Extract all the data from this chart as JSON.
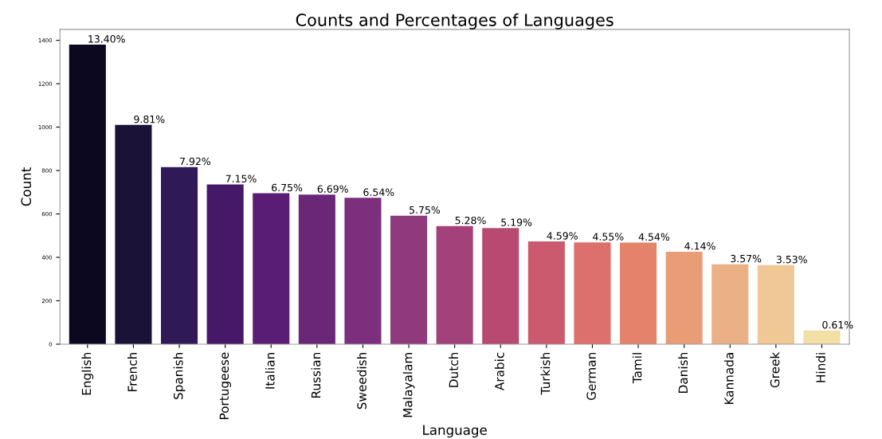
{
  "chart_data": {
    "type": "bar",
    "title": "Counts and Percentages of Languages",
    "xlabel": "Language",
    "ylabel": "Count",
    "categories": [
      "English",
      "French",
      "Spanish",
      "Portugeese",
      "Italian",
      "Russian",
      "Sweedish",
      "Malayalam",
      "Dutch",
      "Arabic",
      "Turkish",
      "German",
      "Tamil",
      "Danish",
      "Kannada",
      "Greek",
      "Hindi"
    ],
    "values": [
      1380,
      1010,
      816,
      736,
      695,
      689,
      674,
      592,
      544,
      535,
      473,
      469,
      468,
      426,
      368,
      364,
      63
    ],
    "annotations": [
      {
        "text": "13.40%",
        "x": "English",
        "y": 1380
      },
      {
        "text": "9.81%",
        "x": "French",
        "y": 1010
      },
      {
        "text": "7.92%",
        "x": "Spanish",
        "y": 816
      },
      {
        "text": "7.15%",
        "x": "Portugeese",
        "y": 736
      },
      {
        "text": "6.75%",
        "x": "Italian",
        "y": 695
      },
      {
        "text": "6.69%",
        "x": "Russian",
        "y": 689
      },
      {
        "text": "6.54%",
        "x": "Sweedish",
        "y": 674
      },
      {
        "text": "5.75%",
        "x": "Malayalam",
        "y": 592
      },
      {
        "text": "5.28%",
        "x": "Dutch",
        "y": 544
      },
      {
        "text": "5.19%",
        "x": "Arabic",
        "y": 535
      },
      {
        "text": "4.59%",
        "x": "Turkish",
        "y": 473
      },
      {
        "text": "4.55%",
        "x": "German",
        "y": 469
      },
      {
        "text": "4.54%",
        "x": "Tamil",
        "y": 468
      },
      {
        "text": "4.14%",
        "x": "Danish",
        "y": 426
      },
      {
        "text": "3.57%",
        "x": "Kannada",
        "y": 368
      },
      {
        "text": "3.53%",
        "x": "Greek",
        "y": 364
      },
      {
        "text": "0.61%",
        "x": "Hindi",
        "y": 63
      }
    ],
    "colors": [
      "#0b0820",
      "#1b1238",
      "#2f1a57",
      "#461868",
      "#5a1d75",
      "#6a2677",
      "#7b2f7c",
      "#8f3a7d",
      "#a3417a",
      "#b84a72",
      "#cb5a6f",
      "#dd6f6c",
      "#e4826b",
      "#e99d77",
      "#ecb086",
      "#efc895",
      "#f2dfa5"
    ],
    "ylim": [
      0,
      1450
    ],
    "yticks": [
      0,
      200,
      400,
      600,
      800,
      1000,
      1200,
      1400
    ],
    "grid": false,
    "legend": false
  }
}
